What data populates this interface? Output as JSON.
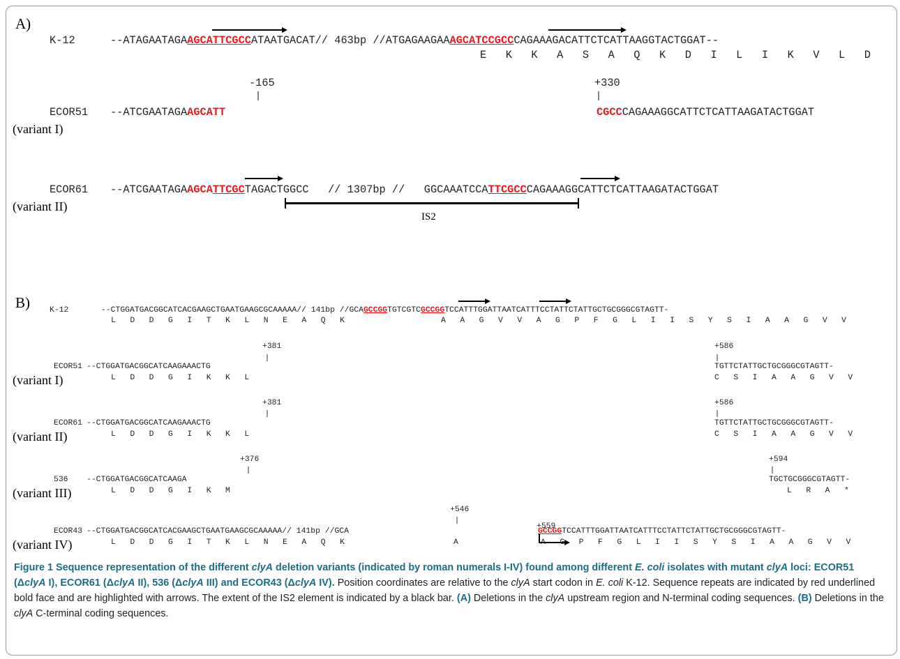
{
  "panel_a": {
    "label": "A)",
    "k12": {
      "name": "K-12",
      "seq_pre": "--ATAGAATAGA",
      "seq_red1": "AGCATTCGCC",
      "seq_mid": "ATAATGACAT// 463bp //ATGAGAAGAA",
      "seq_red2": "AGCATCCGCC",
      "seq_post": "CAGAAAGACATTCTCATTAAGGTACTGGAT--",
      "protein": "E   K   K   A   S   A   Q   K   D   I   L   I   K   V   L   D"
    },
    "coord_left": "-165",
    "coord_right": "+330",
    "ecor51": {
      "name": "ECOR51",
      "variant": "(variant I)",
      "seq_pre": "--ATCGAATAGA",
      "seq_red": "AGCATT",
      "seq_right_red": "CGCC",
      "seq_right": "CAGAAAGGCATTCTCATTAAGATACTGGAT"
    },
    "ecor61": {
      "name": "ECOR61",
      "variant": "(variant II)",
      "seq_pre": "--ATCGAATAGA",
      "seq_red_a": "AGCA",
      "seq_red_b": "TTCGC",
      "seq_mid": "TAGACTGGCC   // 1307bp //   GGCAAATCCA",
      "seq_red_c": "TTCGCC",
      "seq_post": "CAGAAAGGCATTCTCATTAAGATACTGGAT",
      "is_label": "IS2"
    }
  },
  "panel_b": {
    "label": "B)",
    "k12": {
      "name": "K-12",
      "seq_pre": "--CTGGATGACGGCATCACGAAGCTGAATGAAGCGCAAAAA// 141bp //GCA",
      "seq_red1": "GCCGG",
      "seq_mid": "TGTCGTC",
      "seq_red2": "GCCGG",
      "seq_post": "TCCATTTGGATTAATCATTTCCTATTCTATTGCTGCGGGCGTAGTT-",
      "protein_left": "L   D   D   G   I   T   K   L   N   E   A   Q   K",
      "protein_right": "A   A   G   V   V   A   G   P   F   G   L   I   I   S   Y   S   I   A   A   G   V   V"
    },
    "ecor51": {
      "name": "ECOR51",
      "variant": "(variant I)",
      "coord_left": "+381",
      "coord_right": "+586",
      "seq_left": "--CTGGATGACGGCATCAAGAAACTG",
      "seq_right": "TGTTCTATTGCTGCGGGCGTAGTT-",
      "protein_left": "L   D   D   G   I   K   K   L",
      "protein_right": "C   S   I   A   A   G   V   V"
    },
    "ecor61": {
      "name": "ECOR61",
      "variant": "(variant II)",
      "coord_left": "+381",
      "coord_right": "+586",
      "seq_left": "--CTGGATGACGGCATCAAGAAACTG",
      "seq_right": "TGTTCTATTGCTGCGGGCGTAGTT-",
      "protein_left": "L   D   D   G   I   K   K   L",
      "protein_right": "C   S   I   A   A   G   V   V"
    },
    "s536": {
      "name": "536",
      "variant": "(variant III)",
      "coord_left": "+376",
      "coord_right": "+594",
      "seq_left": "--CTGGATGACGGCATCAAGA",
      "seq_right": "TGCTGCGGGCGTAGTT-",
      "protein_left": "L   D   D   G   I   K   M",
      "protein_right": "L   R   A   *"
    },
    "ecor43": {
      "name": "ECOR43",
      "variant": "(variant IV)",
      "coord_left": "+546",
      "coord_right": "+559",
      "seq_left": "--CTGGATGACGGCATCACGAAGCTGAATGAAGCGCAAAAA// 141bp //GCA",
      "seq_red": "GCCGG",
      "seq_right": "TCCATTTGGATTAATCATTTCCTATTCTATTGCTGCGGGCGTAGTT-",
      "protein_left": "L   D   D   G   I   T   K   L   N   E   A   Q   K",
      "protein_mid": "A",
      "protein_right": "A   G   P   F   G   L   I   I   S   Y   S   I   A   A   G   V   V"
    }
  },
  "caption": {
    "fig_label": "Figure 1",
    "b1": " Sequence representation of the different ",
    "b2": "clyA",
    "b3": " deletion variants (indicated by roman numerals I-IV) found among different ",
    "b4": "E. coli",
    "b5": " isolates with mutant ",
    "b6": "clyA",
    "b7": " loci: ECOR51 (Δ",
    "b8": "clyA",
    "b9": " I), ECOR61 (Δ",
    "b10": "clyA",
    "b11": " II), 536 (Δ",
    "b12": "clyA",
    "b13": " III) and ECOR43 (Δ",
    "b14": "clyA",
    "b15": " IV).",
    "n1": " Position coordinates are relative to the ",
    "n2": "clyA",
    "n3": " start codon in ",
    "n4": "E. coli",
    "n5": " K-12. Sequence repeats are indicated by red underlined bold face and are highlighted with arrows. The extent of the IS2 element is indicated by a black bar. ",
    "pa": "(A)",
    "n6": " Deletions in the ",
    "n7": "clyA",
    "n8": " upstream region and N-terminal coding sequences. ",
    "pb": "(B)",
    "n9": " Deletions in the ",
    "n10": "clyA",
    "n11": " C-terminal coding sequences."
  }
}
